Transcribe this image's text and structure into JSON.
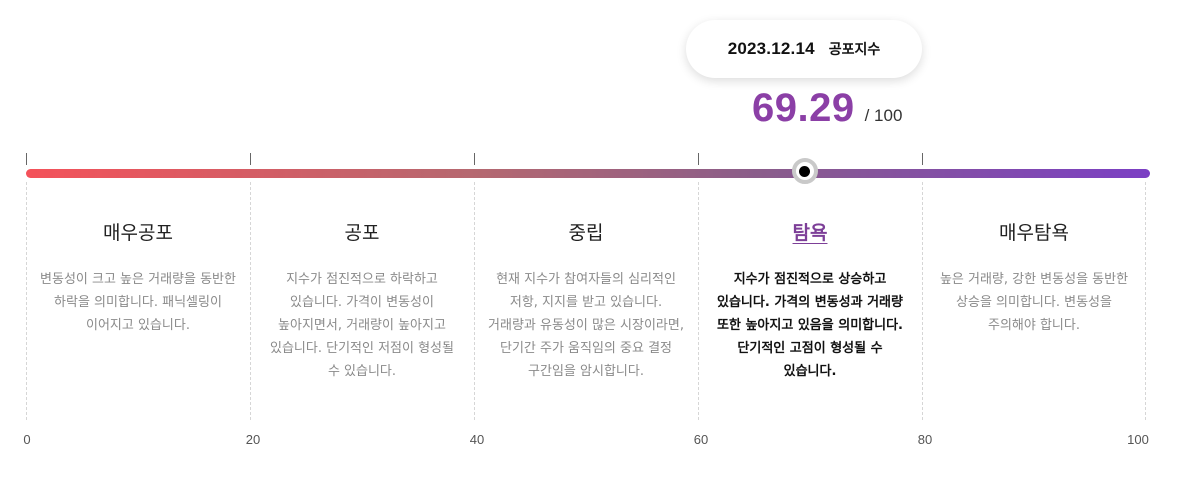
{
  "tooltip": {
    "date": "2023.12.14",
    "label": "공포지수"
  },
  "score": {
    "value": "69.29",
    "max": "/ 100",
    "fraction": 0.6929
  },
  "colors": {
    "accent": "#8b3fa6",
    "gradient_start": "#f4525a",
    "gradient_end": "#7b3fc4"
  },
  "segments": [
    {
      "title": "매우공포",
      "desc": "변동성이 크고 높은 거래량을 동반한 하락을 의미합니다. 패닉셀링이 이어지고 있습니다."
    },
    {
      "title": "공포",
      "desc": "지수가 점진적으로 하락하고 있습니다. 가격이 변동성이 높아지면서, 거래량이 높아지고 있습니다. 단기적인 저점이 형성될 수 있습니다."
    },
    {
      "title": "중립",
      "desc": "현재 지수가 참여자들의 심리적인 저항, 지지를 받고 있습니다. 거래량과 유동성이 많은 시장이라면, 단기간 주가 움직임의 중요 결정 구간임을 암시합니다."
    },
    {
      "title": "탐욕",
      "desc": "지수가 점진적으로 상승하고 있습니다. 가격의 변동성과 거래량 또한 높아지고 있음을 의미합니다. 단기적인 고점이 형성될 수 있습니다.",
      "active": true
    },
    {
      "title": "매우탐욕",
      "desc": "높은 거래량, 강한 변동성을 동반한 상승을 의미합니다. 변동성을 주의해야 합니다."
    }
  ],
  "scale": [
    "0",
    "20",
    "40",
    "60",
    "80",
    "100"
  ]
}
